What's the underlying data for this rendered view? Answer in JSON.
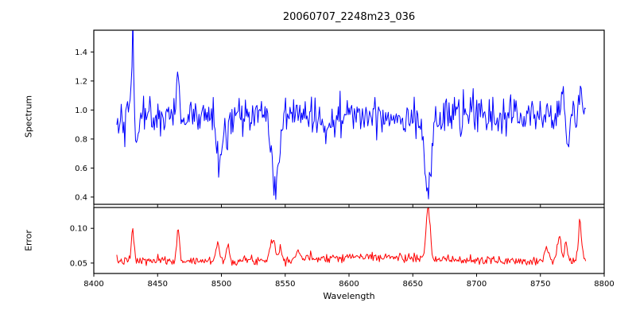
{
  "figure": {
    "title": "20060707_2248m23_036",
    "background": "#ffffff",
    "axes_color": "#000000"
  },
  "chart_data": [
    {
      "type": "line",
      "title": "20060707_2248m23_036",
      "ylabel": "Spectrum",
      "xlabel": "",
      "legend": "none",
      "grid": false,
      "line_color": "#0000ff",
      "xlim": [
        8400,
        8800
      ],
      "ylim": [
        0.35,
        1.55
      ],
      "yticks": [
        0.4,
        0.6,
        0.8,
        1.0,
        1.2,
        1.4
      ],
      "xticks": [
        8400,
        8450,
        8500,
        8550,
        8600,
        8650,
        8700,
        8750,
        8800
      ],
      "description": "Noisy stellar spectrum normalized near 1.0 with Ca II triplet absorption lines at 8498, 8542 and 8662, an emission-like spike to 1.5 near 8430, and increased noise beyond 8750",
      "data_gen": {
        "x_start": 8418,
        "x_end": 8786,
        "step": 0.7,
        "baseline": 0.96,
        "noise_sigma": 0.065,
        "seed": 42,
        "features": [
          {
            "center": 8430.5,
            "width": 0.9,
            "amplitude": 0.54
          },
          {
            "center": 8433.5,
            "width": 1.0,
            "amplitude": -0.22
          },
          {
            "center": 8466.0,
            "width": 1.2,
            "amplitude": 0.2
          },
          {
            "center": 8498.0,
            "width": 2.0,
            "amplitude": -0.33
          },
          {
            "center": 8505.0,
            "width": 1.5,
            "amplitude": -0.18
          },
          {
            "center": 8542.0,
            "width": 2.5,
            "amplitude": -0.56
          },
          {
            "center": 8580.0,
            "width": 1.5,
            "amplitude": -0.12
          },
          {
            "center": 8662.0,
            "width": 2.5,
            "amplitude": -0.55
          },
          {
            "center": 8768.0,
            "width": 1.0,
            "amplitude": 0.2
          },
          {
            "center": 8772.0,
            "width": 1.0,
            "amplitude": -0.24
          },
          {
            "center": 8782.0,
            "width": 1.0,
            "amplitude": 0.18
          }
        ]
      }
    },
    {
      "type": "line",
      "title": "",
      "ylabel": "Error",
      "xlabel": "Wavelength",
      "legend": "none",
      "grid": false,
      "line_color": "#ff0000",
      "xlim": [
        8400,
        8800
      ],
      "ylim": [
        0.035,
        0.13
      ],
      "yticks": [
        0.05,
        0.1
      ],
      "xticks": [
        8400,
        8450,
        8500,
        8550,
        8600,
        8650,
        8700,
        8750,
        8800
      ],
      "description": "Error spectrum around 0.055 with narrow peaks at the same wavelengths as the spectral features; strongest peak near 8662 exceeds 0.12 and is clipped by the axes",
      "data_gen": {
        "x_start": 8418,
        "x_end": 8786,
        "step": 0.7,
        "baseline": 0.053,
        "noise_sigma": 0.0032,
        "seed": 7,
        "features": [
          {
            "center": 8610.0,
            "width": 45.0,
            "amplitude": 0.006
          },
          {
            "center": 8430.5,
            "width": 1.0,
            "amplitude": 0.045
          },
          {
            "center": 8466.0,
            "width": 1.2,
            "amplitude": 0.04
          },
          {
            "center": 8497.0,
            "width": 1.5,
            "amplitude": 0.025
          },
          {
            "center": 8505.0,
            "width": 1.2,
            "amplitude": 0.02
          },
          {
            "center": 8540.0,
            "width": 2.0,
            "amplitude": 0.03
          },
          {
            "center": 8546.0,
            "width": 1.0,
            "amplitude": 0.018
          },
          {
            "center": 8560.0,
            "width": 1.5,
            "amplitude": 0.012
          },
          {
            "center": 8662.0,
            "width": 1.5,
            "amplitude": 0.072
          },
          {
            "center": 8755.0,
            "width": 2.0,
            "amplitude": 0.018
          },
          {
            "center": 8765.0,
            "width": 1.5,
            "amplitude": 0.035
          },
          {
            "center": 8770.0,
            "width": 1.0,
            "amplitude": 0.03
          },
          {
            "center": 8781.0,
            "width": 1.2,
            "amplitude": 0.056
          }
        ]
      }
    }
  ]
}
